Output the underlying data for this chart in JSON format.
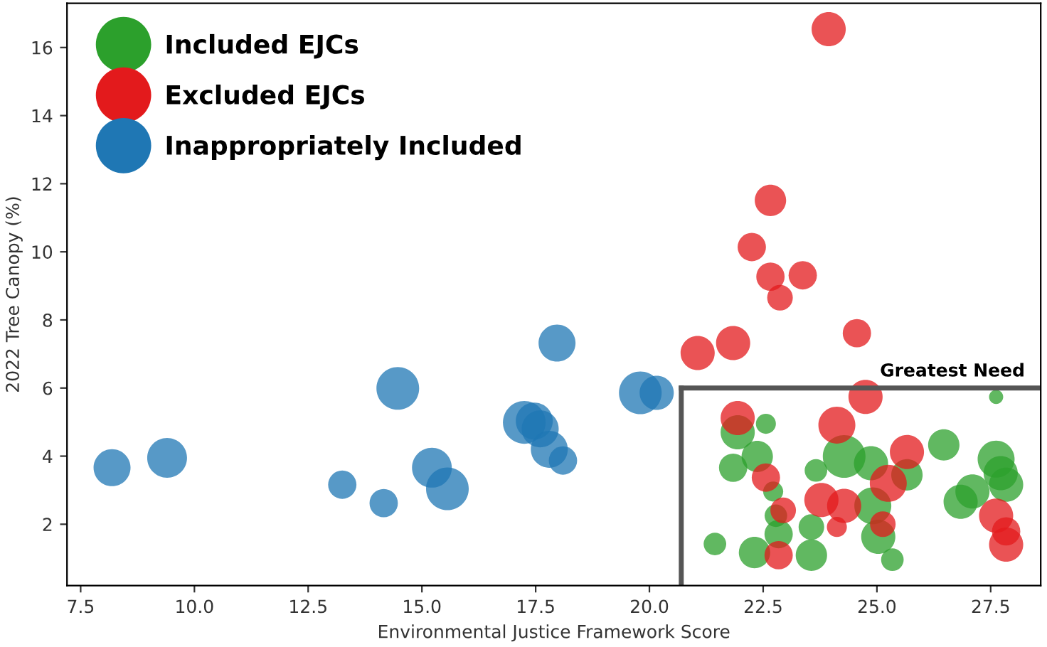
{
  "chart_data": {
    "type": "bubble",
    "xlabel": "Environmental Justice Framework Score",
    "ylabel": "2022 Tree Canopy (%)",
    "xlim": [
      7.2,
      28.6
    ],
    "ylim": [
      0.2,
      17.3
    ],
    "xticks": [
      7.5,
      {
        "value": 10,
        "label": "10.0"
      },
      12.5,
      {
        "value": 15,
        "label": "15.0"
      },
      17.5,
      {
        "value": 20,
        "label": "20.0"
      },
      22.5,
      {
        "value": 25,
        "label": "25.0"
      },
      27.5
    ],
    "yticks": [
      2,
      4,
      6,
      8,
      10,
      12,
      14,
      16
    ],
    "grid": false,
    "legend": "top left",
    "ref_lines": [
      {
        "axis": "x",
        "value": 20.7,
        "color": "#555555"
      },
      {
        "axis": "y",
        "value": 6,
        "label": "Greatest Need",
        "color": "#555555"
      }
    ],
    "series": [
      {
        "name": "Included EJCs",
        "color": "#2ca02c",
        "x": [
          27.62,
          21.94,
          22.56,
          22.37,
          21.84,
          23.66,
          24.28,
          24.87,
          25.66,
          26.47,
          27.62,
          27.72,
          27.1,
          26.84,
          27.84,
          22.72,
          22.78,
          23.56,
          22.84,
          24.91,
          25.03,
          21.44,
          22.31,
          23.56,
          25.34
        ],
        "values": [
          5.74,
          4.7,
          4.95,
          3.99,
          3.66,
          3.58,
          3.99,
          3.79,
          3.45,
          4.33,
          3.91,
          3.5,
          2.96,
          2.66,
          3.16,
          2.96,
          2.25,
          1.92,
          1.71,
          2.54,
          1.63,
          1.42,
          1.17,
          1.09,
          0.96
        ],
        "sizes": [
          0.11,
          0.64,
          0.22,
          0.54,
          0.44,
          0.28,
          1.0,
          0.64,
          0.54,
          0.54,
          0.75,
          0.64,
          0.64,
          0.64,
          0.64,
          0.22,
          0.28,
          0.36,
          0.44,
          0.75,
          0.64,
          0.28,
          0.54,
          0.54,
          0.28
        ]
      },
      {
        "name": "Excluded EJCs",
        "color": "#e31a1c",
        "x": [
          23.94,
          22.66,
          22.25,
          22.66,
          23.37,
          22.87,
          24.56,
          21.84,
          21.06,
          24.75,
          21.94,
          24.12,
          25.66,
          22.56,
          25.25,
          23.78,
          24.28,
          22.94,
          24.12,
          25.13,
          22.84,
          27.62,
          27.84,
          27.84
        ],
        "values": [
          16.54,
          11.51,
          10.14,
          9.27,
          9.31,
          8.65,
          7.61,
          7.32,
          7.03,
          5.74,
          5.12,
          4.91,
          4.12,
          3.37,
          3.2,
          2.71,
          2.54,
          2.41,
          1.92,
          2.0,
          1.09,
          2.25,
          1.79,
          1.4
        ],
        "sizes": [
          0.64,
          0.54,
          0.44,
          0.44,
          0.44,
          0.36,
          0.44,
          0.64,
          0.64,
          0.64,
          0.64,
          0.75,
          0.64,
          0.44,
          0.75,
          0.64,
          0.64,
          0.36,
          0.22,
          0.36,
          0.44,
          0.64,
          0.44,
          0.64
        ]
      },
      {
        "name": "Inappropriately Included",
        "color": "#1f77b4",
        "x": [
          8.19,
          9.4,
          13.25,
          14.16,
          14.47,
          15.22,
          15.56,
          17.25,
          17.47,
          17.6,
          17.8,
          18.1,
          17.97,
          19.8,
          20.16
        ],
        "values": [
          3.66,
          3.95,
          3.16,
          2.62,
          5.99,
          3.66,
          3.04,
          4.99,
          5.03,
          4.8,
          4.2,
          3.87,
          7.32,
          5.86,
          5.86
        ],
        "sizes": [
          0.75,
          0.87,
          0.44,
          0.44,
          1.0,
          0.87,
          1.0,
          1.0,
          0.75,
          0.75,
          0.75,
          0.44,
          0.75,
          1.0,
          0.64
        ]
      }
    ]
  }
}
